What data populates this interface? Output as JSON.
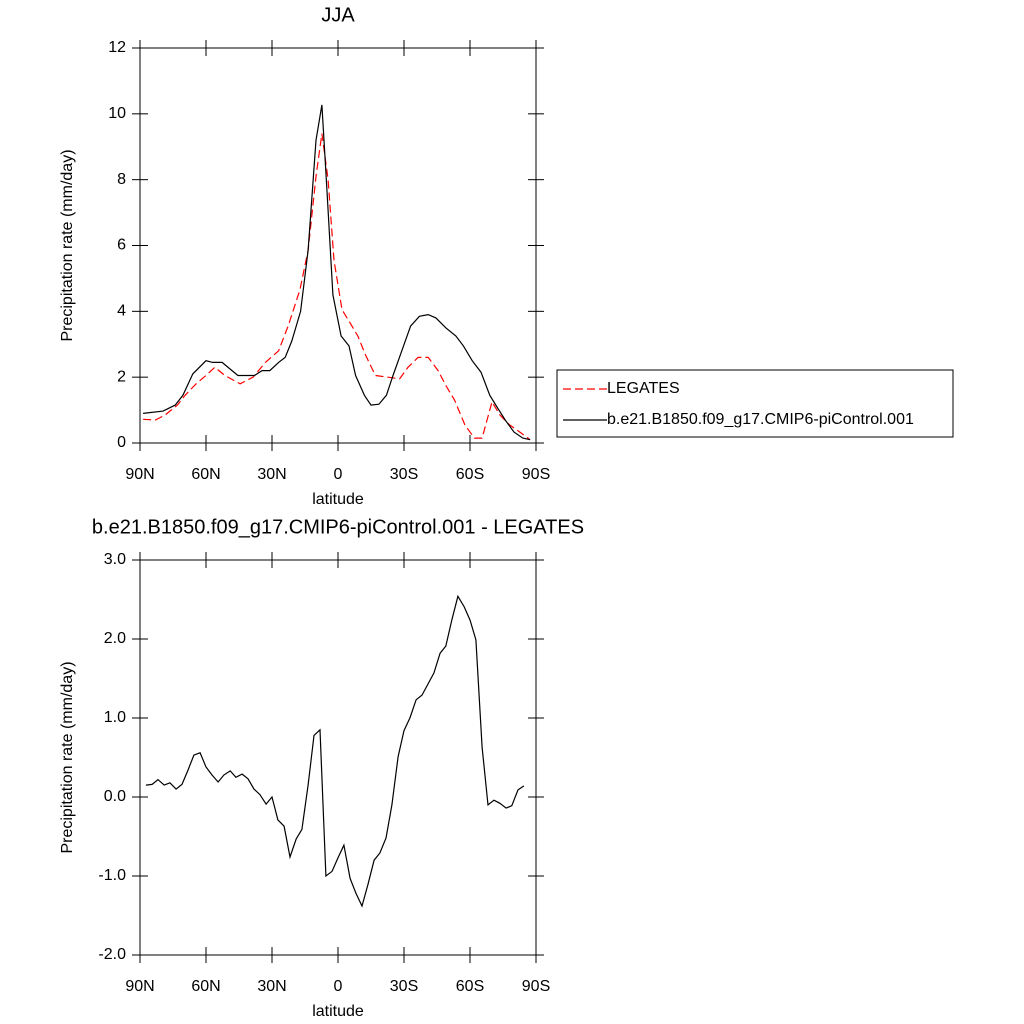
{
  "chart_data": [
    {
      "type": "line",
      "title": "JJA",
      "xlabel": "latitude",
      "ylabel": "Precipitation rate (mm/day)",
      "xlim": [
        90,
        -90
      ],
      "xticks": [
        {
          "value": 90,
          "label": "90N"
        },
        {
          "value": 60,
          "label": "60N"
        },
        {
          "value": 30,
          "label": "30N"
        },
        0,
        {
          "value": -30,
          "label": "30S"
        },
        {
          "value": -60,
          "label": "60S"
        },
        {
          "value": -90,
          "label": "90S"
        }
      ],
      "ylim": [
        0,
        12
      ],
      "yticks": [
        0,
        2,
        4,
        6,
        8,
        10,
        12
      ],
      "legend": "right",
      "series": [
        {
          "name": "LEGATES",
          "color": "#ff0000",
          "dash": true,
          "x": [
            88.6,
            83,
            78.6,
            73,
            69.5,
            64.5,
            60,
            56,
            51.4,
            44.5,
            38.6,
            33,
            27,
            22.7,
            17.3,
            13.6,
            10,
            7.3,
            4.5,
            1.8,
            -1.8,
            -5.5,
            -9,
            -12.7,
            -17,
            -22.7,
            -28,
            -31.8,
            -36.4,
            -41,
            -45.5,
            -49,
            -53,
            -57.7,
            -62,
            -65.5,
            -70,
            -73.6,
            -78,
            -82.7,
            -87.3
          ],
          "values": [
            0.72,
            0.7,
            0.85,
            1.15,
            1.45,
            1.8,
            2.05,
            2.3,
            2.05,
            1.8,
            2.0,
            2.45,
            2.8,
            3.55,
            4.65,
            5.85,
            8.1,
            9.4,
            8.0,
            5.55,
            4.05,
            3.65,
            3.25,
            2.65,
            2.05,
            2.0,
            1.95,
            2.3,
            2.6,
            2.6,
            2.2,
            1.75,
            1.3,
            0.55,
            0.15,
            0.15,
            1.25,
            0.85,
            0.55,
            0.33,
            0.1
          ]
        },
        {
          "name": "b.e21.B1850.f09_g17.CMIP6-piControl.001",
          "color": "#000000",
          "dash": false,
          "x": [
            88.6,
            79.5,
            74,
            70.5,
            66,
            60,
            57,
            52.7,
            45.5,
            38,
            34.5,
            31,
            27,
            24,
            21,
            17,
            13.6,
            10,
            7.3,
            5,
            2.3,
            -1.4,
            -5,
            -8,
            -12,
            -15,
            -18.6,
            -22,
            -25,
            -29,
            -33,
            -37,
            -41,
            -44.5,
            -49,
            -53.6,
            -57,
            -61,
            -65,
            -69,
            -72.7,
            -76,
            -80,
            -84,
            -87.3
          ],
          "values": [
            0.9,
            0.97,
            1.15,
            1.45,
            2.1,
            2.5,
            2.45,
            2.45,
            2.05,
            2.05,
            2.2,
            2.2,
            2.45,
            2.6,
            3.1,
            4.0,
            5.85,
            9.2,
            10.27,
            7.65,
            4.5,
            3.25,
            2.95,
            2.05,
            1.45,
            1.15,
            1.18,
            1.45,
            2.05,
            2.8,
            3.55,
            3.85,
            3.9,
            3.8,
            3.5,
            3.25,
            2.95,
            2.5,
            2.15,
            1.45,
            1.05,
            0.7,
            0.33,
            0.15,
            0.1
          ]
        }
      ]
    },
    {
      "type": "line",
      "title": "b.e21.B1850.f09_g17.CMIP6-piControl.001 - LEGATES",
      "xlabel": "latitude",
      "ylabel": "Precipitation rate (mm/day)",
      "xlim": [
        90,
        -90
      ],
      "xticks": [
        {
          "value": 90,
          "label": "90N"
        },
        {
          "value": 60,
          "label": "60N"
        },
        {
          "value": 30,
          "label": "30N"
        },
        0,
        {
          "value": -30,
          "label": "30S"
        },
        {
          "value": -60,
          "label": "60S"
        },
        {
          "value": -90,
          "label": "90S"
        }
      ],
      "ylim": [
        -2,
        3
      ],
      "yticks": [
        {
          "value": -2,
          "label": "-2.0"
        },
        {
          "value": -1,
          "label": "-1.0"
        },
        {
          "value": 0,
          "label": "0.0"
        },
        {
          "value": 1,
          "label": "1.0"
        },
        {
          "value": 2,
          "label": "2.0"
        },
        {
          "value": 3,
          "label": "3.0"
        }
      ],
      "series": [
        {
          "color": "#000000",
          "dash": false,
          "x": [
            87.3,
            84.5,
            81.8,
            79,
            76.4,
            73.6,
            70.9,
            68.2,
            65.5,
            62.7,
            60,
            57.3,
            54.5,
            51.8,
            49,
            46.4,
            43.6,
            40.9,
            38.2,
            35.5,
            32.7,
            30,
            27.3,
            24.5,
            21.8,
            19,
            16.4,
            13.6,
            10.9,
            8.2,
            5.5,
            2.7,
            0,
            -2.7,
            -5.5,
            -8.2,
            -10.9,
            -13.6,
            -16.4,
            -19,
            -21.8,
            -24.5,
            -27.3,
            -30,
            -32.7,
            -35.5,
            -38.2,
            -40.9,
            -43.6,
            -46.4,
            -49,
            -51.8,
            -54.5,
            -57.3,
            -60,
            -62.7,
            -65.5,
            -68.2,
            -70.9,
            -73.6,
            -76.4,
            -79,
            -81.8,
            -84.5
          ],
          "values": [
            0.15,
            0.16,
            0.22,
            0.15,
            0.18,
            0.1,
            0.16,
            0.34,
            0.53,
            0.56,
            0.38,
            0.28,
            0.19,
            0.28,
            0.33,
            0.25,
            0.29,
            0.23,
            0.1,
            0.03,
            -0.09,
            0,
            -0.29,
            -0.37,
            -0.76,
            -0.53,
            -0.41,
            0.15,
            0.78,
            0.85,
            -1.0,
            -0.94,
            -0.77,
            -0.61,
            -1.03,
            -1.22,
            -1.38,
            -1.11,
            -0.8,
            -0.71,
            -0.52,
            -0.1,
            0.51,
            0.84,
            1.0,
            1.23,
            1.29,
            1.43,
            1.57,
            1.82,
            1.91,
            2.25,
            2.54,
            2.41,
            2.24,
            1.99,
            0.63,
            -0.1,
            -0.04,
            -0.08,
            -0.14,
            -0.11,
            0.09,
            0.14
          ]
        }
      ]
    }
  ]
}
